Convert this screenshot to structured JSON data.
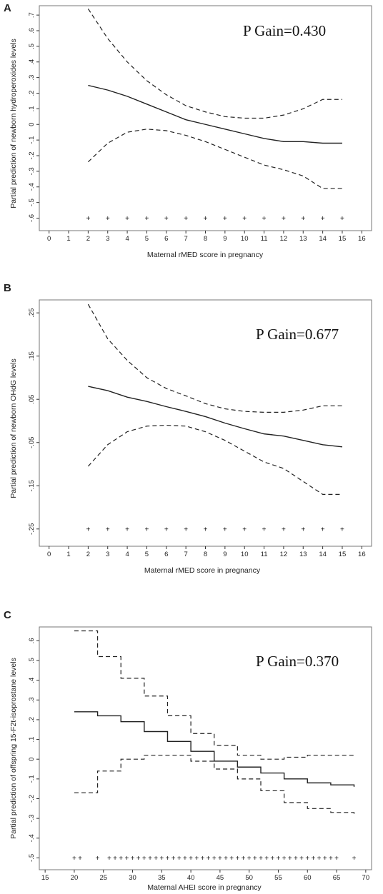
{
  "colors": {
    "line": "#222222",
    "frame": "#777777",
    "background": "#ffffff"
  },
  "chart_data": [
    {
      "panel": "A",
      "type": "line",
      "annotation": "P Gain=0.430",
      "xlabel": "Maternal rMED score in pregnancy",
      "ylabel": "Partial prediction of newborn hydroperoxides levels",
      "xlim": [
        -0.5,
        16.5
      ],
      "ylim": [
        -0.68,
        0.76
      ],
      "xticks": [
        0,
        1,
        2,
        3,
        4,
        5,
        6,
        7,
        8,
        9,
        10,
        11,
        12,
        13,
        14,
        15,
        16
      ],
      "xtick_labels": [
        "0",
        "1",
        "2",
        "3",
        "4",
        "5",
        "6",
        "7",
        "8",
        "9",
        "10",
        "11",
        "12",
        "13",
        "14",
        "15",
        "16"
      ],
      "yticks": [
        -0.6,
        -0.5,
        -0.4,
        -0.3,
        -0.2,
        -0.1,
        0,
        0.1,
        0.2,
        0.3,
        0.4,
        0.5,
        0.6,
        0.7
      ],
      "ytick_labels": [
        "-.6",
        "-.5",
        "-.4",
        "-.3",
        "-.2",
        "-.1",
        "0",
        ".1",
        ".2",
        ".3",
        ".4",
        ".5",
        ".6",
        ".7"
      ],
      "grid": false,
      "series": [
        {
          "style": "solid",
          "step": false,
          "x": [
            2,
            3,
            4,
            5,
            6,
            7,
            8,
            9,
            10,
            11,
            12,
            13,
            14,
            15
          ],
          "y": [
            0.25,
            0.22,
            0.18,
            0.13,
            0.08,
            0.03,
            0.0,
            -0.03,
            -0.06,
            -0.09,
            -0.11,
            -0.11,
            -0.12,
            -0.12
          ]
        },
        {
          "style": "dashed",
          "step": false,
          "x": [
            2,
            3,
            4,
            5,
            6,
            7,
            8,
            9,
            10,
            11,
            12,
            13,
            14,
            15
          ],
          "y": [
            0.74,
            0.55,
            0.4,
            0.28,
            0.19,
            0.12,
            0.08,
            0.05,
            0.04,
            0.04,
            0.06,
            0.1,
            0.16,
            0.16
          ]
        },
        {
          "style": "dashed",
          "step": false,
          "x": [
            2,
            3,
            4,
            5,
            6,
            7,
            8,
            9,
            10,
            11,
            12,
            13,
            14,
            15
          ],
          "y": [
            -0.24,
            -0.12,
            -0.05,
            -0.03,
            -0.04,
            -0.07,
            -0.11,
            -0.16,
            -0.21,
            -0.26,
            -0.29,
            -0.33,
            -0.41,
            -0.41
          ]
        }
      ],
      "rug_y": -0.6,
      "rug_x": [
        2,
        3,
        4,
        5,
        6,
        7,
        8,
        9,
        10,
        11,
        12,
        13,
        14,
        15
      ]
    },
    {
      "panel": "B",
      "type": "line",
      "annotation": "P Gain=0.677",
      "xlabel": "Maternal rMED score in pregnancy",
      "ylabel": "Partial prediction of newborn OHdG levels",
      "xlim": [
        -0.5,
        16.5
      ],
      "ylim": [
        -0.29,
        0.28
      ],
      "xticks": [
        0,
        1,
        2,
        3,
        4,
        5,
        6,
        7,
        8,
        9,
        10,
        11,
        12,
        13,
        14,
        15,
        16
      ],
      "xtick_labels": [
        "0",
        "1",
        "2",
        "3",
        "4",
        "5",
        "6",
        "7",
        "8",
        "9",
        "10",
        "11",
        "12",
        "13",
        "14",
        "15",
        "16"
      ],
      "yticks": [
        -0.25,
        -0.15,
        -0.05,
        0.05,
        0.15,
        0.25
      ],
      "ytick_labels": [
        "-.25",
        "-.15",
        "-.05",
        ".05",
        ".15",
        ".25"
      ],
      "grid": false,
      "series": [
        {
          "style": "solid",
          "step": false,
          "x": [
            2,
            3,
            4,
            5,
            6,
            7,
            8,
            9,
            10,
            11,
            12,
            13,
            14,
            15
          ],
          "y": [
            0.08,
            0.07,
            0.055,
            0.045,
            0.033,
            0.022,
            0.01,
            -0.005,
            -0.018,
            -0.03,
            -0.035,
            -0.045,
            -0.055,
            -0.06
          ]
        },
        {
          "style": "dashed",
          "step": false,
          "x": [
            2,
            3,
            4,
            5,
            6,
            7,
            8,
            9,
            10,
            11,
            12,
            13,
            14,
            15
          ],
          "y": [
            0.27,
            0.19,
            0.14,
            0.1,
            0.075,
            0.058,
            0.04,
            0.028,
            0.022,
            0.02,
            0.02,
            0.025,
            0.035,
            0.035
          ]
        },
        {
          "style": "dashed",
          "step": false,
          "x": [
            2,
            3,
            4,
            5,
            6,
            7,
            8,
            9,
            10,
            11,
            12,
            13,
            14,
            15
          ],
          "y": [
            -0.105,
            -0.055,
            -0.025,
            -0.012,
            -0.01,
            -0.012,
            -0.025,
            -0.045,
            -0.07,
            -0.095,
            -0.11,
            -0.14,
            -0.17,
            -0.17
          ]
        }
      ],
      "rug_y": -0.25,
      "rug_x": [
        2,
        3,
        4,
        5,
        6,
        7,
        8,
        9,
        10,
        11,
        12,
        13,
        14,
        15
      ]
    },
    {
      "panel": "C",
      "type": "line",
      "annotation": "P Gain=0.370",
      "xlabel": "Maternal AHEI score in pregnancy",
      "ylabel": "Partial prediction of offspring 15-F2t-isoprostane levels",
      "xlim": [
        14,
        71
      ],
      "ylim": [
        -0.56,
        0.67
      ],
      "xticks": [
        15,
        20,
        25,
        30,
        35,
        40,
        45,
        50,
        55,
        60,
        65,
        70
      ],
      "xtick_labels": [
        "15",
        "20",
        "25",
        "30",
        "35",
        "40",
        "45",
        "50",
        "55",
        "60",
        "65",
        "70"
      ],
      "yticks": [
        -0.5,
        -0.4,
        -0.3,
        -0.2,
        -0.1,
        0,
        0.1,
        0.2,
        0.3,
        0.4,
        0.5,
        0.6
      ],
      "ytick_labels": [
        "-.5",
        "-.4",
        "-.3",
        "-.2",
        "-.1",
        "0",
        ".1",
        ".2",
        ".3",
        ".4",
        ".5",
        ".6"
      ],
      "grid": false,
      "series": [
        {
          "style": "solid",
          "step": true,
          "x": [
            20,
            24,
            28,
            32,
            36,
            40,
            44,
            48,
            52,
            56,
            60,
            64,
            68
          ],
          "y": [
            0.24,
            0.22,
            0.19,
            0.14,
            0.09,
            0.04,
            -0.01,
            -0.04,
            -0.07,
            -0.1,
            -0.12,
            -0.13,
            -0.14
          ]
        },
        {
          "style": "dashed",
          "step": true,
          "x": [
            20,
            24,
            28,
            32,
            36,
            40,
            44,
            48,
            52,
            56,
            60,
            64,
            68
          ],
          "y": [
            0.65,
            0.52,
            0.41,
            0.32,
            0.22,
            0.13,
            0.07,
            0.02,
            0.0,
            0.01,
            0.02,
            0.02,
            0.03
          ]
        },
        {
          "style": "dashed",
          "step": true,
          "x": [
            20,
            24,
            28,
            32,
            36,
            40,
            44,
            48,
            52,
            56,
            60,
            64,
            68
          ],
          "y": [
            -0.17,
            -0.06,
            0.0,
            0.02,
            0.02,
            -0.01,
            -0.05,
            -0.1,
            -0.16,
            -0.22,
            -0.25,
            -0.27,
            -0.29
          ]
        }
      ],
      "rug_y": -0.5,
      "rug_x": [
        20,
        21,
        24,
        26,
        27,
        28,
        29,
        30,
        31,
        32,
        33,
        34,
        35,
        36,
        37,
        38,
        39,
        40,
        41,
        42,
        43,
        44,
        45,
        46,
        47,
        48,
        49,
        50,
        51,
        52,
        53,
        54,
        55,
        56,
        57,
        58,
        59,
        60,
        61,
        62,
        63,
        64,
        65,
        68
      ]
    }
  ]
}
